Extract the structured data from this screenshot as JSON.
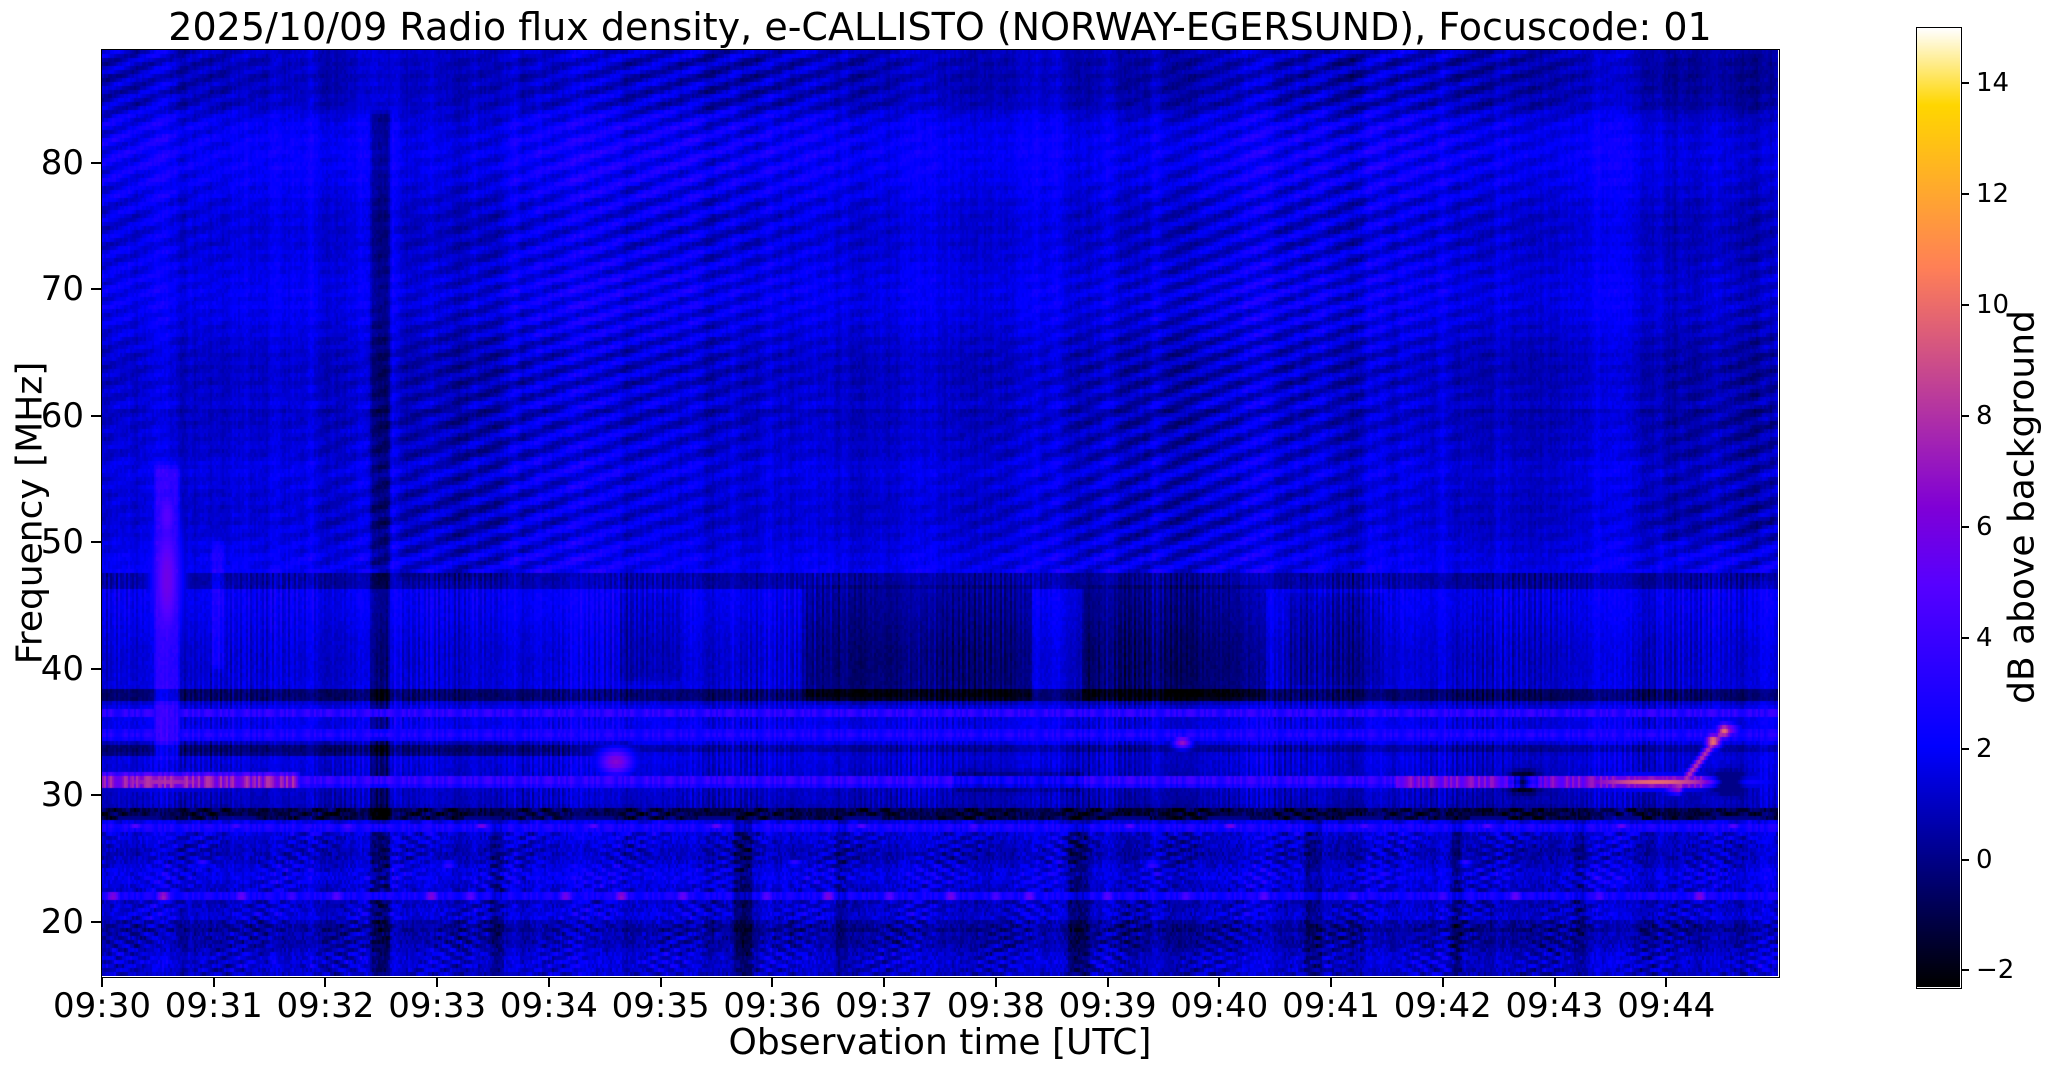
{
  "figure": {
    "background_color": "#ffffff",
    "text_color": "#000000"
  },
  "chart_data": {
    "type": "heatmap",
    "subtype": "radio-spectrogram",
    "title": "2025/10/09  Radio flux density, e-CALLISTO (NORWAY-EGERSUND), Focuscode: 01",
    "xlabel": "Observation time [UTC]",
    "ylabel": "Frequency [MHz]",
    "x_ticks": [
      "09:30",
      "09:31",
      "09:32",
      "09:33",
      "09:34",
      "09:35",
      "09:36",
      "09:37",
      "09:38",
      "09:39",
      "09:40",
      "09:41",
      "09:42",
      "09:43",
      "09:44"
    ],
    "x_range_minutes": [
      0,
      15
    ],
    "x_start_time": "09:30",
    "x_end_time": "09:45",
    "y_ticks": [
      80,
      70,
      60,
      50,
      40,
      30,
      20
    ],
    "ylim": [
      15.7,
      88.9
    ],
    "grid": false,
    "colorbar": {
      "label": "dB above background",
      "ticks": [
        14,
        12,
        10,
        8,
        6,
        4,
        2,
        0,
        -2
      ],
      "clim": [
        -2.3,
        15.0
      ],
      "colormap": "gnuplot2",
      "position": "right"
    },
    "texture": {
      "base_db": 1.6,
      "noise_db": 0.55,
      "column_flicker_db": 0.5,
      "diagonal": {
        "f_min": 47.5,
        "amp_db": 1.0,
        "period_cols": 26,
        "period_rows": 9
      },
      "striation": {
        "f_range": [
          28.8,
          47.5
        ],
        "amp_db": 0.85,
        "base_offset_db": -0.2
      },
      "mottle": {
        "f_max": 28.8,
        "amp_db": 1.05,
        "base_offset_db": -0.3
      }
    },
    "features": [
      {
        "type": "hline",
        "name": "dark-band-above-84MHz",
        "f": [
          84.0,
          88.9
        ],
        "t": [
          0,
          15
        ],
        "mode": "add",
        "dv": -0.5
      },
      {
        "type": "hline",
        "name": "dark-band-58MHz",
        "f": [
          56.5,
          60.5
        ],
        "t": [
          0,
          15
        ],
        "mode": "add",
        "dv": -0.45
      },
      {
        "type": "hline",
        "name": "boundary-47MHz",
        "f": [
          46.4,
          47.6
        ],
        "t": [
          0,
          15
        ],
        "mode": "add",
        "dv": -1.3
      },
      {
        "type": "vband",
        "name": "data-gap-0932.4",
        "t": [
          2.38,
          2.6
        ],
        "f": [
          15.7,
          84.0
        ],
        "dv": -2.0
      },
      {
        "type": "vband",
        "name": "shadow-column-high-0932.6-0933.6",
        "t": [
          2.6,
          3.65
        ],
        "f": [
          47.0,
          84.0
        ],
        "dv": -0.45
      },
      {
        "type": "vband",
        "name": "dark-top-right-corner",
        "t": [
          13.9,
          15.0
        ],
        "f": [
          50.0,
          88.9
        ],
        "dv": -0.5
      },
      {
        "type": "vband",
        "name": "dark-right-edge-high",
        "t": [
          14.7,
          15.0
        ],
        "f": [
          47.0,
          88.9
        ],
        "dv": -0.6
      },
      {
        "type": "vband",
        "name": "bright-streak-0930.6",
        "t": [
          0.45,
          0.72
        ],
        "f": [
          33.0,
          56.0
        ],
        "dv": 1.8
      },
      {
        "type": "blob",
        "name": "bright-streak-core",
        "tc": 0.58,
        "fc": 47.0,
        "st": 0.1,
        "sf": 4.5,
        "mode": "max",
        "v": 5.8
      },
      {
        "type": "blob",
        "name": "bright-streak-core-upper",
        "tc": 0.58,
        "fc": 52.0,
        "st": 0.08,
        "sf": 2.0,
        "mode": "max",
        "v": 5.0
      },
      {
        "type": "vband",
        "name": "echo-streak-0931",
        "t": [
          0.95,
          1.12
        ],
        "f": [
          40.0,
          50.0
        ],
        "dv": 1.2
      },
      {
        "type": "vband",
        "name": "absorption-patch-0934.6",
        "t": [
          4.6,
          5.2
        ],
        "f": [
          39.0,
          46.0
        ],
        "dv": -0.7
      },
      {
        "type": "vband",
        "name": "absorption-patch-0936.3",
        "t": [
          6.25,
          8.35
        ],
        "f": [
          37.5,
          46.4
        ],
        "dv": -1.5
      },
      {
        "type": "vband",
        "name": "absorption-patch-0938.8",
        "t": [
          8.75,
          10.45
        ],
        "f": [
          37.5,
          46.4
        ],
        "dv": -1.5
      },
      {
        "type": "vband",
        "name": "absorption-patch-0940.6",
        "t": [
          10.6,
          11.5
        ],
        "f": [
          38.5,
          46.0
        ],
        "dv": -0.9
      },
      {
        "type": "hline",
        "name": "rfi-dark-37.8MHz",
        "f": [
          37.4,
          38.3
        ],
        "t": [
          0,
          15
        ],
        "mode": "add",
        "dv": -2.0
      },
      {
        "type": "hline",
        "name": "bright-36.5MHz",
        "f": [
          36.2,
          36.8
        ],
        "t": [
          0,
          15
        ],
        "mode": "max",
        "v": 3.4
      },
      {
        "type": "hline",
        "name": "bright-34.8MHz",
        "f": [
          34.5,
          35.1
        ],
        "t": [
          0,
          15
        ],
        "mode": "max",
        "v": 3.0
      },
      {
        "type": "hline",
        "name": "rfi-dark-33.6MHz-left",
        "f": [
          33.2,
          34.1
        ],
        "t": [
          0,
          4.7
        ],
        "mode": "add",
        "dv": -2.0
      },
      {
        "type": "hline",
        "name": "rfi-dark-33.6MHz-right",
        "f": [
          33.3,
          33.9
        ],
        "t": [
          4.7,
          15
        ],
        "mode": "add",
        "dv": -1.1
      },
      {
        "type": "blob",
        "name": "burst-arc-0934.5",
        "tc": 4.6,
        "fc": 32.6,
        "st": 0.12,
        "sf": 0.8,
        "mode": "max",
        "v": 6.5
      },
      {
        "type": "dots",
        "name": "bright-dot-0939.6",
        "st": 0.06,
        "sf": 0.4,
        "pts": [
          [
            9.67,
            34.2,
            7.0
          ]
        ]
      },
      {
        "type": "hline",
        "name": "bright-31MHz-left",
        "f": [
          30.6,
          31.6
        ],
        "t": [
          0,
          1.75
        ],
        "mode": "max",
        "v": 6.8
      },
      {
        "type": "blob",
        "name": "bright-31MHz-left-peak",
        "tc": 0.55,
        "fc": 31.1,
        "st": 0.5,
        "sf": 0.4,
        "mode": "max",
        "v": 8.0
      },
      {
        "type": "hline",
        "name": "bright-31MHz-mid",
        "f": [
          30.7,
          31.4
        ],
        "t": [
          1.75,
          11.6
        ],
        "mode": "max",
        "v": 3.6
      },
      {
        "type": "vband",
        "name": "dim-gap-31MHz",
        "t": [
          7.6,
          8.8
        ],
        "f": [
          30.3,
          31.8
        ],
        "dv": -1.2
      },
      {
        "type": "hline",
        "name": "bright-31MHz-right",
        "f": [
          30.6,
          31.5
        ],
        "t": [
          11.6,
          14.35
        ],
        "mode": "max",
        "v": 6.0
      },
      {
        "type": "blob",
        "name": "orange-blob-31MHz-0943.9",
        "tc": 13.9,
        "fc": 31.0,
        "st": 0.55,
        "sf": 0.35,
        "mode": "max",
        "v": 9.8
      },
      {
        "type": "dots",
        "name": "dark-holes-31MHz",
        "st": 0.09,
        "sf": 0.5,
        "pts": [
          [
            12.72,
            31.0,
            -6.0
          ],
          [
            14.55,
            31.0,
            -6.0
          ]
        ]
      },
      {
        "type": "streak",
        "name": "rising-burst-0944.2",
        "t0": 14.12,
        "f0": 30.6,
        "t1": 14.52,
        "f1": 35.2,
        "w": 0.09,
        "v": 8.0
      },
      {
        "type": "dots",
        "name": "rising-burst-tip-dots",
        "st": 0.05,
        "sf": 0.45,
        "pts": [
          [
            14.42,
            34.3,
            10.5
          ],
          [
            14.52,
            35.1,
            10.0
          ]
        ]
      },
      {
        "type": "hline",
        "name": "rfi-dark-28.6MHz",
        "f": [
          28.1,
          29.0
        ],
        "t": [
          0,
          15
        ],
        "mode": "add",
        "dv": -1.6
      },
      {
        "type": "hline",
        "name": "bright-27.5MHz",
        "f": [
          27.2,
          27.8
        ],
        "t": [
          0,
          15
        ],
        "mode": "max",
        "v": 2.8
      },
      {
        "type": "dots",
        "name": "speckles-27.5MHz",
        "st": 0.05,
        "sf": 0.2,
        "pts": [
          [
            0.3,
            27.5,
            5
          ],
          [
            1.2,
            27.6,
            4.5
          ],
          [
            2.2,
            27.4,
            5.5
          ],
          [
            3.4,
            27.5,
            6
          ],
          [
            4.4,
            27.5,
            5
          ],
          [
            5.5,
            27.5,
            5.5
          ],
          [
            6.8,
            27.5,
            5
          ],
          [
            7.8,
            27.4,
            5.5
          ],
          [
            9.2,
            27.5,
            5
          ],
          [
            10.1,
            27.5,
            6
          ],
          [
            11.3,
            27.5,
            4.5
          ],
          [
            12.4,
            27.5,
            5
          ],
          [
            13.6,
            27.5,
            5.5
          ],
          [
            14.6,
            27.5,
            5
          ]
        ]
      },
      {
        "type": "dots",
        "name": "speckles-24.6MHz",
        "st": 0.05,
        "sf": 0.2,
        "pts": [
          [
            0.9,
            24.6,
            4
          ],
          [
            3.1,
            24.5,
            4.5
          ],
          [
            6.2,
            24.6,
            4
          ],
          [
            9.4,
            24.5,
            4.5
          ],
          [
            12.2,
            24.6,
            4
          ]
        ]
      },
      {
        "type": "hline",
        "name": "bright-22MHz",
        "f": [
          21.8,
          22.3
        ],
        "t": [
          0,
          15
        ],
        "mode": "max",
        "v": 2.6
      },
      {
        "type": "dots",
        "name": "speckles-22MHz",
        "st": 0.05,
        "sf": 0.25,
        "pts": [
          [
            0.1,
            22,
            7.5
          ],
          [
            0.55,
            22,
            8.5
          ],
          [
            1.25,
            22,
            6.5
          ],
          [
            1.7,
            22,
            5
          ],
          [
            2.1,
            22,
            6
          ],
          [
            2.95,
            22,
            7.5
          ],
          [
            3.3,
            22,
            6
          ],
          [
            4.15,
            22,
            7
          ],
          [
            4.65,
            22,
            8
          ],
          [
            5.2,
            22,
            6.5
          ],
          [
            5.95,
            22,
            6
          ],
          [
            6.5,
            22,
            7.5
          ],
          [
            7.05,
            22,
            6
          ],
          [
            7.6,
            22,
            7
          ],
          [
            8.0,
            22,
            5.5
          ],
          [
            8.3,
            22,
            6.5
          ],
          [
            9.0,
            22,
            6
          ],
          [
            9.7,
            22,
            5.5
          ],
          [
            10.4,
            22,
            6
          ],
          [
            11.2,
            22,
            5
          ],
          [
            12.0,
            22,
            5
          ],
          [
            12.65,
            22,
            6.5
          ],
          [
            13.4,
            22,
            5.5
          ],
          [
            14.3,
            22,
            7.5
          ]
        ]
      },
      {
        "type": "hline",
        "name": "dark-band-19.6MHz",
        "f": [
          19.2,
          20.0
        ],
        "t": [
          0,
          15
        ],
        "mode": "add",
        "dv": -0.7
      },
      {
        "type": "vband",
        "name": "low-gap-0933.5",
        "t": [
          3.45,
          3.62
        ],
        "f": [
          15.7,
          28.0
        ],
        "dv": -1.0
      },
      {
        "type": "vband",
        "name": "low-gap-0935.6",
        "t": [
          5.62,
          5.85
        ],
        "f": [
          15.7,
          28.0
        ],
        "dv": -1.6
      },
      {
        "type": "vband",
        "name": "low-gap-0936.5",
        "t": [
          6.55,
          6.7
        ],
        "f": [
          15.7,
          28.0
        ],
        "dv": -0.9
      },
      {
        "type": "vband",
        "name": "low-gap-0938.6",
        "t": [
          8.62,
          8.85
        ],
        "f": [
          15.7,
          28.0
        ],
        "dv": -1.2
      },
      {
        "type": "vband",
        "name": "low-gap-0940.8",
        "t": [
          10.75,
          10.95
        ],
        "f": [
          15.7,
          28.0
        ],
        "dv": -1.2
      },
      {
        "type": "vband",
        "name": "low-gap-0942.1",
        "t": [
          12.05,
          12.2
        ],
        "f": [
          15.7,
          28.0
        ],
        "dv": -1.0
      },
      {
        "type": "vband",
        "name": "low-gap-0943.2",
        "t": [
          13.15,
          13.3
        ],
        "f": [
          15.7,
          28.0
        ],
        "dv": -0.9
      }
    ]
  }
}
